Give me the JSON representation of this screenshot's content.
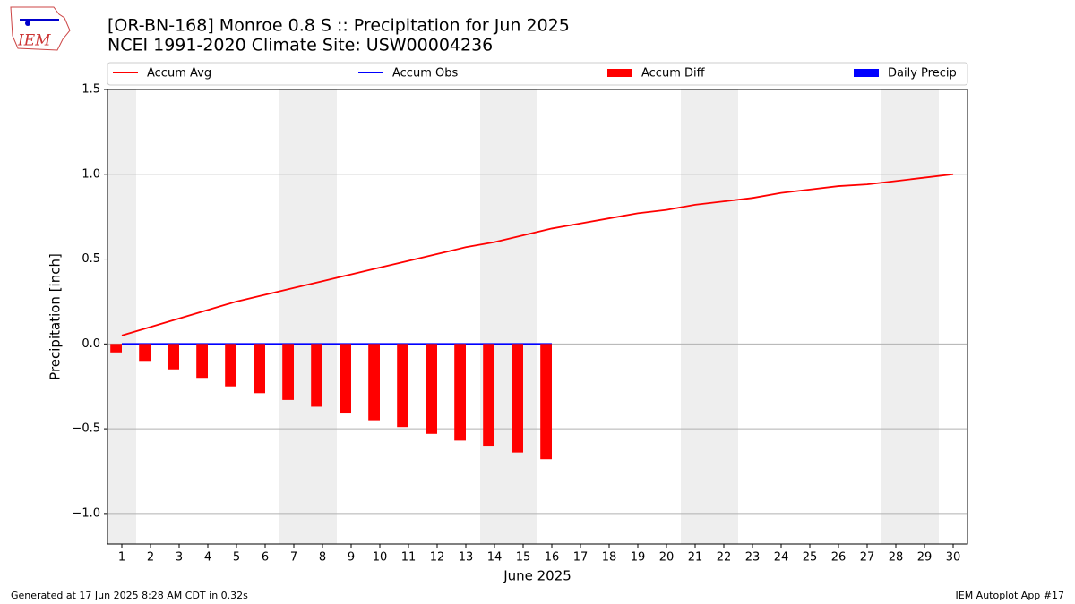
{
  "chart_data": {
    "type": "combo",
    "logo_text": "IEM",
    "title": "[OR-BN-168] Monroe 0.8 S :: Precipitation for Jun 2025",
    "subtitle": "NCEI 1991-2020 Climate Site: USW00004236",
    "xlabel": "June 2025",
    "ylabel": "Precipitation [inch]",
    "footer_left": "Generated at 17 Jun 2025 8:28 AM CDT in 0.32s",
    "footer_right": "IEM Autoplot App #17",
    "x": [
      1,
      2,
      3,
      4,
      5,
      6,
      7,
      8,
      9,
      10,
      11,
      12,
      13,
      14,
      15,
      16,
      17,
      18,
      19,
      20,
      21,
      22,
      23,
      24,
      25,
      26,
      27,
      28,
      29,
      30
    ],
    "xlim": [
      0.5,
      30.5
    ],
    "xticks": [
      1,
      2,
      3,
      4,
      5,
      6,
      7,
      8,
      9,
      10,
      11,
      12,
      13,
      14,
      15,
      16,
      17,
      18,
      19,
      20,
      21,
      22,
      23,
      24,
      25,
      26,
      27,
      28,
      29,
      30
    ],
    "ylim": [
      -1.18,
      1.5
    ],
    "yticks": [
      {
        "value": -1.0,
        "label": "−1.0"
      },
      {
        "value": -0.5,
        "label": "−0.5"
      },
      {
        "value": 0.0,
        "label": "0.0"
      },
      {
        "value": 0.5,
        "label": "0.5"
      },
      {
        "value": 1.0,
        "label": "1.0"
      },
      {
        "value": 1.5,
        "label": "1.5"
      }
    ],
    "grid": true,
    "shaded_spans": [
      [
        0.5,
        1.5
      ],
      [
        6.5,
        8.5
      ],
      [
        13.5,
        15.5
      ],
      [
        20.5,
        22.5
      ],
      [
        27.5,
        29.5
      ]
    ],
    "shade_color": "#eeeeee",
    "legend": "top",
    "series": [
      {
        "name": "Accum Avg",
        "kind": "line",
        "color": "#ff0000",
        "values": [
          0.05,
          0.1,
          0.15,
          0.2,
          0.25,
          0.29,
          0.33,
          0.37,
          0.41,
          0.45,
          0.49,
          0.53,
          0.57,
          0.6,
          0.64,
          0.68,
          0.71,
          0.74,
          0.77,
          0.79,
          0.82,
          0.84,
          0.86,
          0.89,
          0.91,
          0.93,
          0.94,
          0.96,
          0.98,
          1.0
        ]
      },
      {
        "name": "Accum Obs",
        "kind": "line",
        "color": "#0000ff",
        "values": [
          0,
          0,
          0,
          0,
          0,
          0,
          0,
          0,
          0,
          0,
          0,
          0,
          0,
          0,
          0,
          0,
          null,
          null,
          null,
          null,
          null,
          null,
          null,
          null,
          null,
          null,
          null,
          null,
          null,
          null
        ]
      },
      {
        "name": "Accum Diff",
        "kind": "bar",
        "color": "#ff0000",
        "values": [
          -0.05,
          -0.1,
          -0.15,
          -0.2,
          -0.25,
          -0.29,
          -0.33,
          -0.37,
          -0.41,
          -0.45,
          -0.49,
          -0.53,
          -0.57,
          -0.6,
          -0.64,
          -0.68,
          null,
          null,
          null,
          null,
          null,
          null,
          null,
          null,
          null,
          null,
          null,
          null,
          null,
          null
        ]
      },
      {
        "name": "Daily Precip",
        "kind": "bar",
        "color": "#0000ff",
        "values": [
          0,
          0,
          0,
          0,
          0,
          0,
          0,
          0,
          0,
          0,
          0,
          0,
          0,
          0,
          0,
          0,
          null,
          null,
          null,
          null,
          null,
          null,
          null,
          null,
          null,
          null,
          null,
          null,
          null,
          null
        ]
      }
    ]
  }
}
